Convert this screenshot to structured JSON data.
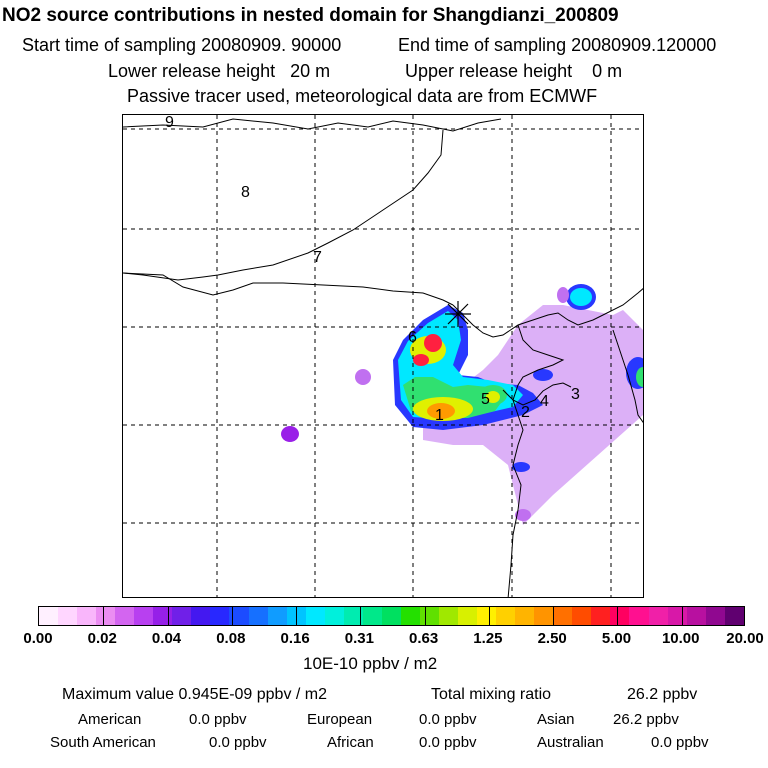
{
  "header": {
    "title": "NO2 source contributions in nested domain for Shangdianzi_200809",
    "start_label": "Start time of sampling 20080909. 90000",
    "end_label": "End time of sampling 20080909.120000",
    "lower_label": "Lower release height   20 m",
    "upper_label": "Upper release height    0 m",
    "tracer_note": "Passive tracer used, meteorological data are from ECMWF"
  },
  "colorbar": {
    "tick_labels": [
      "0.00",
      "0.02",
      "0.04",
      "0.08",
      "0.16",
      "0.31",
      "0.63",
      "1.25",
      "2.50",
      "5.00",
      "10.00",
      "20.00"
    ],
    "units": "10E-10 ppbv / m2",
    "colors": [
      "#fff0ff",
      "#ffd6ff",
      "#f9b6fb",
      "#eb8df2",
      "#d365f0",
      "#b840f0",
      "#9620e8",
      "#7020e8",
      "#4418f0",
      "#2828ff",
      "#1c4cff",
      "#1670ff",
      "#109cff",
      "#00c4ff",
      "#00e8ff",
      "#00f0dc",
      "#00ecb0",
      "#00e88a",
      "#00e060",
      "#24e000",
      "#60e000",
      "#a0e800",
      "#d8f000",
      "#fff000",
      "#ffd000",
      "#ffb400",
      "#ff9400",
      "#ff7000",
      "#ff4c00",
      "#ff2020",
      "#ff0060",
      "#ff1090",
      "#f020a8",
      "#d818a8",
      "#b810a0",
      "#900890",
      "#600070"
    ]
  },
  "map": {
    "source_labels": [
      "1",
      "2",
      "3",
      "4",
      "5",
      "6",
      "7",
      "8",
      "9"
    ],
    "colors": {
      "violet": "#c070f0",
      "purple": "#9a20e8",
      "blue": "#2838ff",
      "cyan": "#00e8ff",
      "green": "#30e070",
      "yellow": "#e0f000",
      "orange": "#ff9a00",
      "red": "#ff2040"
    }
  },
  "stats": {
    "max_label": "Maximum value  0.945E-09 ppbv / m2",
    "total_label": "Total mixing ratio",
    "total_value": "26.2 ppbv"
  },
  "regions": [
    {
      "name": "American",
      "value": "0.0 ppbv"
    },
    {
      "name": "European",
      "value": "0.0 ppbv"
    },
    {
      "name": "Asian",
      "value": "26.2 ppbv"
    },
    {
      "name": "South American",
      "value": "0.0 ppbv"
    },
    {
      "name": "African",
      "value": "0.0 ppbv"
    },
    {
      "name": "Australian",
      "value": "0.0 ppbv"
    }
  ],
  "chart_data": {
    "type": "heatmap",
    "title": "NO2 source contributions in nested domain for Shangdianzi_200809",
    "color_scale_levels": [
      0.0,
      0.02,
      0.04,
      0.08,
      0.16,
      0.31,
      0.63,
      1.25,
      2.5,
      5.0,
      10.0,
      20.0
    ],
    "units": "10E-10 ppbv / m2",
    "max_value": "0.945E-09 ppbv / m2",
    "total_mixing_ratio_ppbv": 26.2,
    "region_contributions_ppbv": {
      "American": 0.0,
      "European": 0.0,
      "Asian": 26.2,
      "South American": 0.0,
      "African": 0.0,
      "Australian": 0.0
    },
    "grid": "dashed"
  }
}
